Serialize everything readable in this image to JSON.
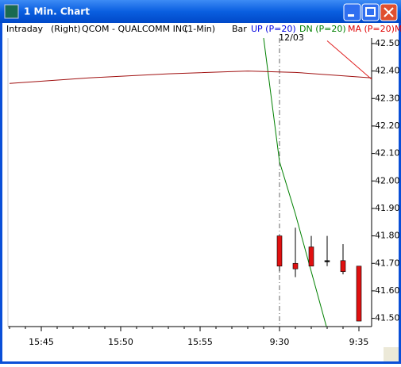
{
  "window": {
    "title": "1 Min. Chart"
  },
  "chart_data": {
    "type": "candlestick",
    "header": [
      "Intraday",
      "(Right)",
      "QCOM - QUALCOMM INC",
      "(1-Min)",
      "Bar"
    ],
    "header_tail": "M",
    "annotation": "12/03",
    "xlim": [
      -2.1,
      20.8
    ],
    "xticks": [
      {
        "value": 0,
        "label": "15:45"
      },
      {
        "value": 5,
        "label": "15:50"
      },
      {
        "value": 10,
        "label": "15:55"
      },
      {
        "value": 15,
        "label": "9:30"
      },
      {
        "value": 20,
        "label": "9:35"
      }
    ],
    "ylim": [
      41.47,
      42.52
    ],
    "yticks": [
      {
        "value": 42.5,
        "label": "42.50"
      },
      {
        "value": 42.4,
        "label": "42.40"
      },
      {
        "value": 42.3,
        "label": "42.30"
      },
      {
        "value": 42.2,
        "label": "42.20"
      },
      {
        "value": 42.1,
        "label": "42.10"
      },
      {
        "value": 42.0,
        "label": "42.00"
      },
      {
        "value": 41.9,
        "label": "41.90"
      },
      {
        "value": 41.8,
        "label": "41.80"
      },
      {
        "value": 41.7,
        "label": "41.70"
      },
      {
        "value": 41.6,
        "label": "41.60"
      },
      {
        "value": 41.5,
        "label": "41.50"
      }
    ],
    "candles": {
      "color": "#e01010",
      "x": [
        15,
        16,
        17,
        18,
        19,
        20
      ],
      "open": [
        41.8,
        41.7,
        41.76,
        41.71,
        41.71,
        41.69
      ],
      "high": [
        41.8,
        41.83,
        41.8,
        41.8,
        41.77,
        41.69
      ],
      "low": [
        41.67,
        41.65,
        41.69,
        41.69,
        41.66,
        41.49
      ],
      "close": [
        41.69,
        41.68,
        41.69,
        41.71,
        41.67,
        41.49
      ]
    },
    "series": [
      {
        "name": "UP (P=20)",
        "color": "#0000e0",
        "line_color": "#e02020",
        "x": [
          18,
          19,
          20,
          20.8
        ],
        "values": [
          42.51,
          42.46,
          42.41,
          42.37
        ]
      },
      {
        "name": "DN (P=20)",
        "color": "#008000",
        "line_color": "#008000",
        "x": [
          14,
          15,
          16,
          17,
          18
        ],
        "values": [
          42.52,
          42.07,
          41.88,
          41.67,
          41.46
        ]
      },
      {
        "name": "MA (P=20)",
        "color": "#e00000",
        "line_color": "#a01010",
        "x": [
          -2,
          3,
          8,
          13,
          16,
          20.8
        ],
        "values": [
          42.355,
          42.375,
          42.39,
          42.4,
          42.395,
          42.375
        ]
      }
    ]
  }
}
